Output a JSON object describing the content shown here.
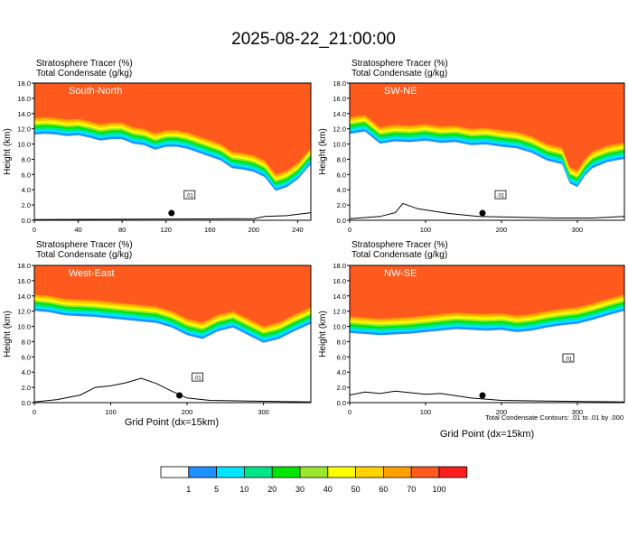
{
  "title": "2025-08-22_21:00:00",
  "panel_header": {
    "line1": "Stratosphere Tracer   (%)",
    "line2": "Total Condensate   (g/kg)"
  },
  "xlabel": "Grid Point (dx=15km)",
  "ylabel": "Height (km)",
  "contour_note": "Total Condensate Contours: .01 to .01 by .000",
  "contour_label": ".01",
  "colorbar": {
    "colors": [
      "#ffffff",
      "#1e90ff",
      "#00e5ff",
      "#00e58a",
      "#00e600",
      "#9be62e",
      "#ffff00",
      "#ffd200",
      "#ffa000",
      "#ff5a1e",
      "#ff1e1e"
    ],
    "tick_labels": [
      "1",
      "5",
      "10",
      "20",
      "30",
      "40",
      "50",
      "60",
      "70",
      "100"
    ]
  },
  "chart_data": [
    {
      "type": "heatmap",
      "name": "South-North",
      "y_ticks": [
        "0.0",
        "2.0",
        "4.0",
        "6.0",
        "8.0",
        "10.0",
        "12.0",
        "14.0",
        "16.0",
        "18.0"
      ],
      "ylim": [
        0,
        18
      ],
      "x_ticks": [
        "0",
        "40",
        "80",
        "120",
        "160",
        "200",
        "240"
      ],
      "x_tick_values": [
        0,
        40,
        80,
        120,
        160,
        200,
        240
      ],
      "xlim": [
        0,
        252
      ],
      "marker_x": 125,
      "tropopause_km": [
        [
          0,
          13.4
        ],
        [
          10,
          13.5
        ],
        [
          20,
          13.4
        ],
        [
          30,
          13.2
        ],
        [
          40,
          13.3
        ],
        [
          50,
          13.0
        ],
        [
          60,
          12.6
        ],
        [
          70,
          12.8
        ],
        [
          80,
          12.8
        ],
        [
          90,
          12.2
        ],
        [
          100,
          12.0
        ],
        [
          110,
          11.4
        ],
        [
          120,
          11.8
        ],
        [
          130,
          11.8
        ],
        [
          140,
          11.5
        ],
        [
          150,
          11.0
        ],
        [
          160,
          10.5
        ],
        [
          170,
          10.0
        ],
        [
          180,
          9.0
        ],
        [
          190,
          8.8
        ],
        [
          200,
          8.5
        ],
        [
          210,
          7.8
        ],
        [
          220,
          6.0
        ],
        [
          230,
          6.5
        ],
        [
          240,
          7.5
        ],
        [
          252,
          9.5
        ]
      ],
      "terrain_km": [
        [
          0,
          0.1
        ],
        [
          200,
          0.2
        ],
        [
          210,
          0.5
        ],
        [
          230,
          0.6
        ],
        [
          252,
          1.0
        ]
      ]
    },
    {
      "type": "heatmap",
      "name": "SW-NE",
      "y_ticks": [
        "0.0",
        "2.0",
        "4.0",
        "6.0",
        "8.0",
        "10.0",
        "12.0",
        "14.0",
        "16.0",
        "18.0"
      ],
      "ylim": [
        0,
        18
      ],
      "x_ticks": [
        "0",
        "100",
        "200",
        "300"
      ],
      "x_tick_values": [
        0,
        100,
        200,
        300
      ],
      "xlim": [
        0,
        362
      ],
      "marker_x": 175,
      "tropopause_km": [
        [
          0,
          13.5
        ],
        [
          20,
          13.8
        ],
        [
          40,
          12.2
        ],
        [
          60,
          12.5
        ],
        [
          80,
          12.4
        ],
        [
          100,
          12.6
        ],
        [
          120,
          12.3
        ],
        [
          140,
          12.4
        ],
        [
          160,
          12.0
        ],
        [
          180,
          12.1
        ],
        [
          200,
          11.8
        ],
        [
          220,
          11.6
        ],
        [
          240,
          11.0
        ],
        [
          260,
          10.0
        ],
        [
          280,
          9.5
        ],
        [
          290,
          7.0
        ],
        [
          300,
          6.5
        ],
        [
          310,
          8.0
        ],
        [
          320,
          9.0
        ],
        [
          340,
          9.8
        ],
        [
          362,
          10.2
        ]
      ],
      "terrain_km": [
        [
          0,
          0.2
        ],
        [
          40,
          0.5
        ],
        [
          60,
          1.0
        ],
        [
          70,
          2.2
        ],
        [
          90,
          1.5
        ],
        [
          110,
          1.2
        ],
        [
          130,
          0.9
        ],
        [
          170,
          0.5
        ],
        [
          220,
          0.4
        ],
        [
          270,
          0.3
        ],
        [
          320,
          0.3
        ],
        [
          362,
          0.5
        ]
      ]
    },
    {
      "type": "heatmap",
      "name": "West-East",
      "y_ticks": [
        "0.0",
        "2.0",
        "4.0",
        "6.0",
        "8.0",
        "10.0",
        "12.0",
        "14.0",
        "16.0",
        "18.0"
      ],
      "ylim": [
        0,
        18
      ],
      "x_ticks": [
        "0",
        "100",
        "200",
        "300"
      ],
      "x_tick_values": [
        0,
        100,
        200,
        300
      ],
      "xlim": [
        0,
        362
      ],
      "marker_x": 190,
      "tropopause_km": [
        [
          0,
          14.2
        ],
        [
          20,
          14.0
        ],
        [
          40,
          13.6
        ],
        [
          60,
          13.5
        ],
        [
          80,
          13.4
        ],
        [
          100,
          13.2
        ],
        [
          120,
          13.0
        ],
        [
          140,
          12.8
        ],
        [
          160,
          12.6
        ],
        [
          180,
          12.0
        ],
        [
          200,
          11.0
        ],
        [
          220,
          10.5
        ],
        [
          240,
          11.5
        ],
        [
          260,
          12.0
        ],
        [
          280,
          11.0
        ],
        [
          300,
          10.0
        ],
        [
          320,
          10.5
        ],
        [
          340,
          11.5
        ],
        [
          362,
          12.5
        ]
      ],
      "terrain_km": [
        [
          0,
          0.1
        ],
        [
          30,
          0.4
        ],
        [
          60,
          1.0
        ],
        [
          80,
          2.0
        ],
        [
          100,
          2.2
        ],
        [
          120,
          2.6
        ],
        [
          140,
          3.2
        ],
        [
          160,
          2.5
        ],
        [
          180,
          1.5
        ],
        [
          200,
          0.6
        ],
        [
          230,
          0.3
        ],
        [
          280,
          0.2
        ],
        [
          362,
          0.1
        ]
      ]
    },
    {
      "type": "heatmap",
      "name": "NW-SE",
      "y_ticks": [
        "0.0",
        "2.0",
        "4.0",
        "6.0",
        "8.0",
        "10.0",
        "12.0",
        "14.0",
        "16.0",
        "18.0"
      ],
      "ylim": [
        0,
        18
      ],
      "x_ticks": [
        "0",
        "100",
        "200",
        "300"
      ],
      "x_tick_values": [
        0,
        100,
        200,
        300
      ],
      "xlim": [
        0,
        362
      ],
      "marker_x": 175,
      "tropopause_km": [
        [
          0,
          11.3
        ],
        [
          40,
          11.0
        ],
        [
          80,
          11.2
        ],
        [
          100,
          11.4
        ],
        [
          120,
          11.6
        ],
        [
          140,
          11.8
        ],
        [
          160,
          11.7
        ],
        [
          180,
          11.6
        ],
        [
          200,
          11.7
        ],
        [
          220,
          11.4
        ],
        [
          240,
          11.6
        ],
        [
          260,
          12.0
        ],
        [
          280,
          12.3
        ],
        [
          300,
          12.5
        ],
        [
          320,
          13.0
        ],
        [
          340,
          13.6
        ],
        [
          362,
          14.2
        ]
      ],
      "terrain_km": [
        [
          0,
          1.0
        ],
        [
          20,
          1.4
        ],
        [
          40,
          1.2
        ],
        [
          60,
          1.5
        ],
        [
          80,
          1.3
        ],
        [
          100,
          1.1
        ],
        [
          120,
          1.2
        ],
        [
          140,
          0.9
        ],
        [
          160,
          0.6
        ],
        [
          200,
          0.3
        ],
        [
          260,
          0.2
        ],
        [
          362,
          0.1
        ]
      ]
    }
  ]
}
